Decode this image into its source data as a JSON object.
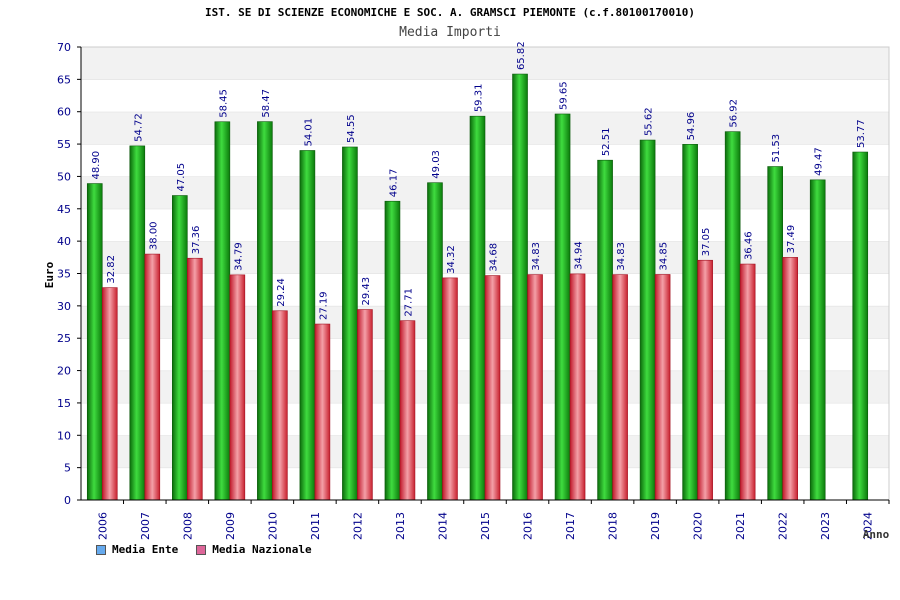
{
  "chart_data": {
    "type": "bar",
    "title": "IST. SE DI SCIENZE ECONOMICHE E SOC. A. GRAMSCI PIEMONTE (c.f.80100170010)",
    "subtitle": "Media Importi",
    "ylabel": "Euro",
    "xlabel": "Anno",
    "ylim": [
      0,
      70
    ],
    "ytick_step": 5,
    "grid": "horizontal bands",
    "legend_position": "bottom-left",
    "categories": [
      "2006",
      "2007",
      "2008",
      "2009",
      "2010",
      "2011",
      "2012",
      "2013",
      "2014",
      "2015",
      "2016",
      "2017",
      "2018",
      "2019",
      "2020",
      "2021",
      "2022",
      "2023",
      "2024"
    ],
    "series": [
      {
        "name": "Media Ente",
        "color": "#22aa22",
        "legend_color": "#66aaee",
        "values": [
          48.9,
          54.72,
          47.05,
          58.45,
          58.47,
          54.01,
          54.55,
          46.17,
          49.03,
          59.31,
          65.82,
          59.65,
          52.51,
          55.62,
          54.96,
          56.92,
          51.53,
          49.47,
          53.77
        ],
        "labels": [
          "48.90",
          "54.72",
          "47.05",
          "58.45",
          "58.47",
          "54.01",
          "54.55",
          "46.17",
          "49.03",
          "59.31",
          "65.82",
          "59.65",
          "52.51",
          "55.62",
          "54.96",
          "56.92",
          "51.53",
          "49.47",
          "53.77"
        ]
      },
      {
        "name": "Media Nazionale",
        "color": "#dd3344",
        "legend_color": "#dd6699",
        "values": [
          32.82,
          38.0,
          37.36,
          34.79,
          29.24,
          27.19,
          29.43,
          27.71,
          34.32,
          34.68,
          34.83,
          34.94,
          34.83,
          34.85,
          37.05,
          36.46,
          37.49,
          null,
          null
        ],
        "labels": [
          "32.82",
          "38.00",
          "37.36",
          "34.79",
          "29.24",
          "27.19",
          "29.43",
          "27.71",
          "34.32",
          "34.68",
          "34.83",
          "34.94",
          "34.83",
          "34.85",
          "37.05",
          "36.46",
          "37.49",
          null,
          null
        ]
      }
    ]
  }
}
